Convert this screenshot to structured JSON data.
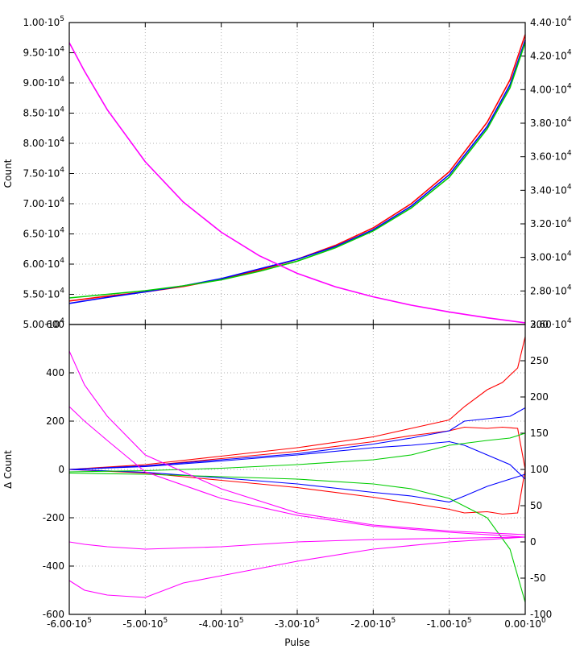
{
  "chart_data": [
    {
      "type": "line",
      "title": "",
      "xlabel": "",
      "ylabel": "Count",
      "xlim": [
        -600000,
        0
      ],
      "ylim": [
        50000,
        100000
      ],
      "y2lim": [
        26000,
        44000
      ],
      "x_ticks": [
        "-6.00·10^5",
        "-5.00·10^5",
        "-4.00·10^5",
        "-3.00·10^5",
        "-2.00·10^5",
        "-1.00·10^5",
        "0.00·10^0"
      ],
      "y_ticks": [
        "5.00·10^4",
        "5.50·10^4",
        "6.00·10^4",
        "6.50·10^4",
        "7.00·10^4",
        "7.50·10^4",
        "8.00·10^4",
        "8.50·10^4",
        "9.00·10^4",
        "9.50·10^4",
        "1.00·10^5"
      ],
      "y2_ticks": [
        "2.60·10^4",
        "2.80·10^4",
        "3.00·10^4",
        "3.20·10^4",
        "3.40·10^4",
        "3.60·10^4",
        "3.80·10^4",
        "4.00·10^4",
        "4.20·10^4",
        "4.40·10^4"
      ],
      "grid": true,
      "series": [
        {
          "color": "#ff0000",
          "axis": "y",
          "x": [
            -600000,
            -550000,
            -500000,
            -450000,
            -400000,
            -350000,
            -300000,
            -250000,
            -200000,
            -150000,
            -100000,
            -50000,
            -20000,
            0
          ],
          "values": [
            53900,
            54700,
            55400,
            56300,
            57500,
            59000,
            60800,
            63100,
            66000,
            70000,
            75300,
            83500,
            90500,
            98000
          ]
        },
        {
          "color": "#0000ff",
          "axis": "y",
          "x": [
            -600000,
            -550000,
            -500000,
            -450000,
            -400000,
            -350000,
            -300000,
            -250000,
            -200000,
            -150000,
            -100000,
            -50000,
            -20000,
            0
          ],
          "values": [
            53500,
            54500,
            55400,
            56400,
            57600,
            59200,
            60800,
            62900,
            65700,
            69600,
            74800,
            82800,
            89700,
            97100
          ]
        },
        {
          "color": "#00cc00",
          "axis": "y",
          "x": [
            -600000,
            -550000,
            -500000,
            -450000,
            -400000,
            -350000,
            -300000,
            -250000,
            -200000,
            -150000,
            -100000,
            -50000,
            -20000,
            0
          ],
          "values": [
            54400,
            55000,
            55600,
            56400,
            57400,
            58800,
            60500,
            62700,
            65500,
            69300,
            74400,
            82400,
            89200,
            96700
          ]
        },
        {
          "color": "#ff00ff",
          "axis": "y2",
          "x": [
            -600000,
            -580000,
            -550000,
            -500000,
            -450000,
            -400000,
            -350000,
            -300000,
            -250000,
            -200000,
            -150000,
            -100000,
            -50000,
            0
          ],
          "values": [
            42800,
            41100,
            38800,
            35700,
            33300,
            31500,
            30100,
            29050,
            28250,
            27650,
            27150,
            26750,
            26400,
            26100
          ]
        }
      ]
    },
    {
      "type": "line",
      "title": "",
      "xlabel": "Pulse",
      "ylabel": "Δ Count",
      "xlim": [
        -600000,
        0
      ],
      "ylim": [
        -600,
        600
      ],
      "y2lim": [
        -100,
        300
      ],
      "x_ticks": [
        "-6.00·10^5",
        "-5.00·10^5",
        "-4.00·10^5",
        "-3.00·10^5",
        "-2.00·10^5",
        "-1.00·10^5",
        "0.00·10^0"
      ],
      "y_ticks": [
        "-600",
        "-400",
        "-200",
        "0",
        "200",
        "400",
        "600"
      ],
      "y2_ticks": [
        "-100",
        "-50",
        "0",
        "50",
        "100",
        "150",
        "200",
        "250",
        "300"
      ],
      "grid": true,
      "series": [
        {
          "color": "#ff0000",
          "axis": "y",
          "x": [
            -600000,
            -500000,
            -400000,
            -300000,
            -200000,
            -150000,
            -100000,
            -80000,
            -50000,
            -30000,
            -10000,
            0
          ],
          "values": [
            0,
            20,
            55,
            90,
            135,
            170,
            205,
            260,
            330,
            360,
            420,
            550
          ]
        },
        {
          "color": "#ff0000",
          "axis": "y",
          "x": [
            -600000,
            -500000,
            -400000,
            -300000,
            -200000,
            -150000,
            -100000,
            -80000,
            -50000,
            -30000,
            -10000,
            0
          ],
          "values": [
            0,
            15,
            45,
            75,
            115,
            140,
            160,
            175,
            170,
            175,
            170,
            0
          ]
        },
        {
          "color": "#ff0000",
          "axis": "y",
          "x": [
            -600000,
            -500000,
            -400000,
            -300000,
            -200000,
            -150000,
            -100000,
            -80000,
            -50000,
            -30000,
            -10000,
            0
          ],
          "values": [
            0,
            -15,
            -45,
            -75,
            -115,
            -140,
            -165,
            -180,
            -175,
            -185,
            -180,
            0
          ]
        },
        {
          "color": "#0000ff",
          "axis": "y",
          "x": [
            -600000,
            -500000,
            -400000,
            -300000,
            -200000,
            -150000,
            -100000,
            -80000,
            -50000,
            -20000,
            0
          ],
          "values": [
            0,
            15,
            40,
            65,
            105,
            130,
            160,
            200,
            210,
            220,
            255
          ]
        },
        {
          "color": "#0000ff",
          "axis": "y",
          "x": [
            -600000,
            -500000,
            -400000,
            -300000,
            -200000,
            -150000,
            -100000,
            -80000,
            -50000,
            -20000,
            0
          ],
          "values": [
            0,
            12,
            35,
            60,
            90,
            100,
            115,
            100,
            60,
            20,
            -40
          ]
        },
        {
          "color": "#0000ff",
          "axis": "y",
          "x": [
            -600000,
            -500000,
            -400000,
            -300000,
            -200000,
            -150000,
            -100000,
            -80000,
            -50000,
            -20000,
            0
          ],
          "values": [
            0,
            -12,
            -35,
            -60,
            -95,
            -110,
            -135,
            -110,
            -70,
            -40,
            -20
          ]
        },
        {
          "color": "#00cc00",
          "axis": "y",
          "x": [
            -600000,
            -500000,
            -400000,
            -300000,
            -200000,
            -150000,
            -100000,
            -50000,
            -20000,
            0
          ],
          "values": [
            -10,
            -5,
            5,
            20,
            40,
            60,
            100,
            120,
            130,
            150
          ]
        },
        {
          "color": "#00cc00",
          "axis": "y",
          "x": [
            -600000,
            -500000,
            -400000,
            -300000,
            -200000,
            -150000,
            -100000,
            -50000,
            -20000,
            0
          ],
          "values": [
            -15,
            -20,
            -30,
            -40,
            -60,
            -80,
            -120,
            -200,
            -330,
            -550
          ]
        },
        {
          "color": "#ff00ff",
          "axis": "y",
          "x": [
            -600000,
            -580000,
            -550000,
            -500000,
            -400000,
            -300000,
            -200000,
            -100000,
            0
          ],
          "values": [
            490,
            350,
            220,
            60,
            -80,
            -180,
            -230,
            -255,
            -270
          ]
        },
        {
          "color": "#ff00ff",
          "axis": "y",
          "x": [
            -600000,
            -580000,
            -550000,
            -500000,
            -400000,
            -300000,
            -200000,
            -100000,
            0
          ],
          "values": [
            260,
            200,
            120,
            -10,
            -120,
            -190,
            -235,
            -260,
            -280
          ]
        },
        {
          "color": "#ff00ff",
          "axis": "y",
          "x": [
            -600000,
            -580000,
            -550000,
            -500000,
            -400000,
            -300000,
            -200000,
            -100000,
            0
          ],
          "values": [
            -300,
            -310,
            -320,
            -330,
            -320,
            -300,
            -290,
            -285,
            -280
          ]
        },
        {
          "color": "#ff00ff",
          "axis": "y",
          "x": [
            -600000,
            -580000,
            -550000,
            -500000,
            -450000,
            -400000,
            -300000,
            -200000,
            -100000,
            0
          ],
          "values": [
            -460,
            -500,
            -520,
            -530,
            -470,
            -440,
            -380,
            -330,
            -300,
            -280
          ]
        }
      ]
    }
  ]
}
